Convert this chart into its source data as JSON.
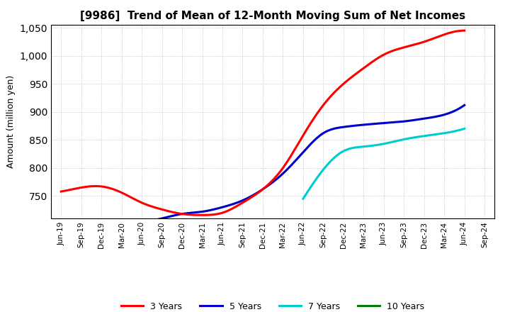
{
  "title": "[9986]  Trend of Mean of 12-Month Moving Sum of Net Incomes",
  "ylabel": "Amount (million yen)",
  "ylim": [
    710,
    1055
  ],
  "yticks": [
    750,
    800,
    850,
    900,
    950,
    1000,
    1050
  ],
  "background_color": "#ffffff",
  "grid_color": "#bbbbbb",
  "x_labels": [
    "Jun-19",
    "Sep-19",
    "Dec-19",
    "Mar-20",
    "Jun-20",
    "Sep-20",
    "Dec-20",
    "Mar-21",
    "Jun-21",
    "Sep-21",
    "Dec-21",
    "Mar-22",
    "Jun-22",
    "Sep-22",
    "Dec-22",
    "Mar-23",
    "Jun-23",
    "Sep-23",
    "Dec-23",
    "Mar-24",
    "Jun-24",
    "Sep-24"
  ],
  "y_3yr": [
    758,
    765,
    767,
    756,
    738,
    726,
    718,
    716,
    720,
    738,
    762,
    800,
    858,
    912,
    950,
    978,
    1002,
    1015,
    1025,
    1038,
    1045,
    null
  ],
  "y_5yr": [
    null,
    null,
    null,
    700,
    703,
    710,
    718,
    722,
    730,
    742,
    762,
    790,
    828,
    862,
    873,
    877,
    880,
    883,
    888,
    895,
    912,
    null
  ],
  "y_7yr": [
    null,
    null,
    null,
    null,
    null,
    null,
    null,
    null,
    null,
    null,
    null,
    null,
    745,
    797,
    830,
    838,
    843,
    851,
    857,
    862,
    870,
    null
  ],
  "y_10yr": [
    null,
    null,
    null,
    null,
    null,
    null,
    null,
    null,
    null,
    null,
    null,
    null,
    null,
    null,
    null,
    null,
    null,
    null,
    null,
    null,
    null,
    null
  ],
  "color_3yr": "#ff0000",
  "color_5yr": "#0000cc",
  "color_7yr": "#00cccc",
  "color_10yr": "#008000",
  "linewidth": 2.2
}
